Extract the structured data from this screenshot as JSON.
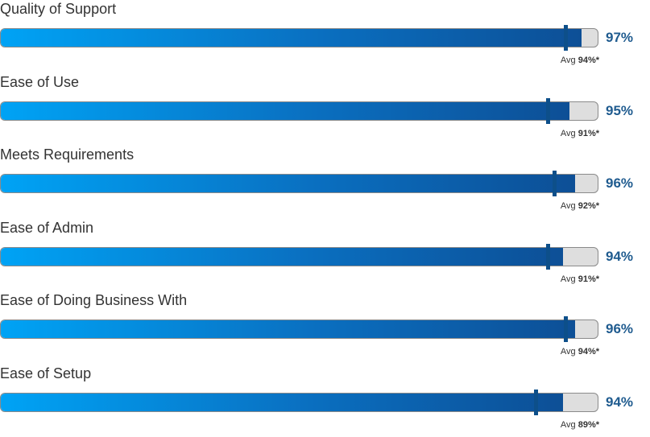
{
  "chart_data": {
    "type": "bar",
    "orientation": "horizontal",
    "avg_prefix": "Avg",
    "categories": [
      "Quality of Support",
      "Ease of Use",
      "Meets Requirements",
      "Ease of Admin",
      "Ease of Doing Business With",
      "Ease of Setup"
    ],
    "values": [
      97,
      95,
      96,
      94,
      96,
      94
    ],
    "value_labels": [
      "97%",
      "95%",
      "96%",
      "94%",
      "96%",
      "94%"
    ],
    "averages": [
      94,
      91,
      92,
      91,
      94,
      89
    ],
    "average_labels": [
      "94%*",
      "91%*",
      "92%*",
      "91%*",
      "94%*",
      "89%*"
    ],
    "xlim": [
      0,
      100
    ],
    "colors": {
      "fill_start": "#00a3f5",
      "fill_end": "#0d4f96",
      "track": "#dedede",
      "marker": "#0d4f8a",
      "value_text": "#1f5b8f"
    }
  }
}
